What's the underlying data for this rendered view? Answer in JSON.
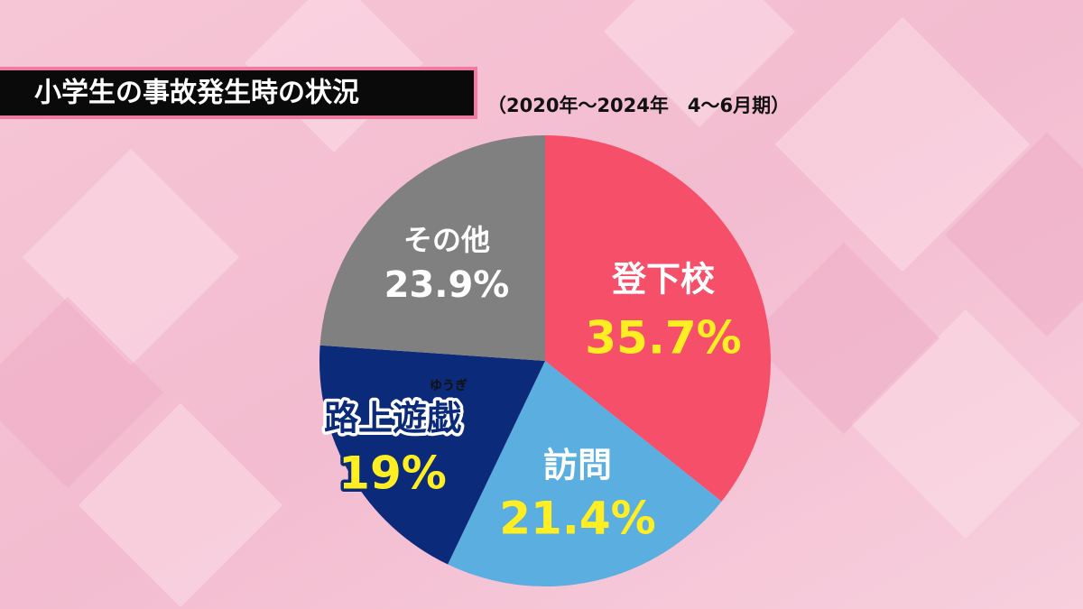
{
  "chart_data": {
    "type": "pie",
    "title": "小学生の事故発生時の状況",
    "subtitle": "（2020年～2024年　4～6月期）",
    "categories": [
      "登下校",
      "訪問",
      "路上遊戯",
      "その他"
    ],
    "values": [
      35.7,
      21.4,
      19,
      23.9
    ],
    "value_labels": [
      "35.7%",
      "21.4%",
      "19%",
      "23.9%"
    ],
    "colors": [
      "#f64f6a",
      "#5aaee0",
      "#0c2a7a",
      "#808080"
    ],
    "annotations": [
      "ゆうぎ"
    ]
  }
}
